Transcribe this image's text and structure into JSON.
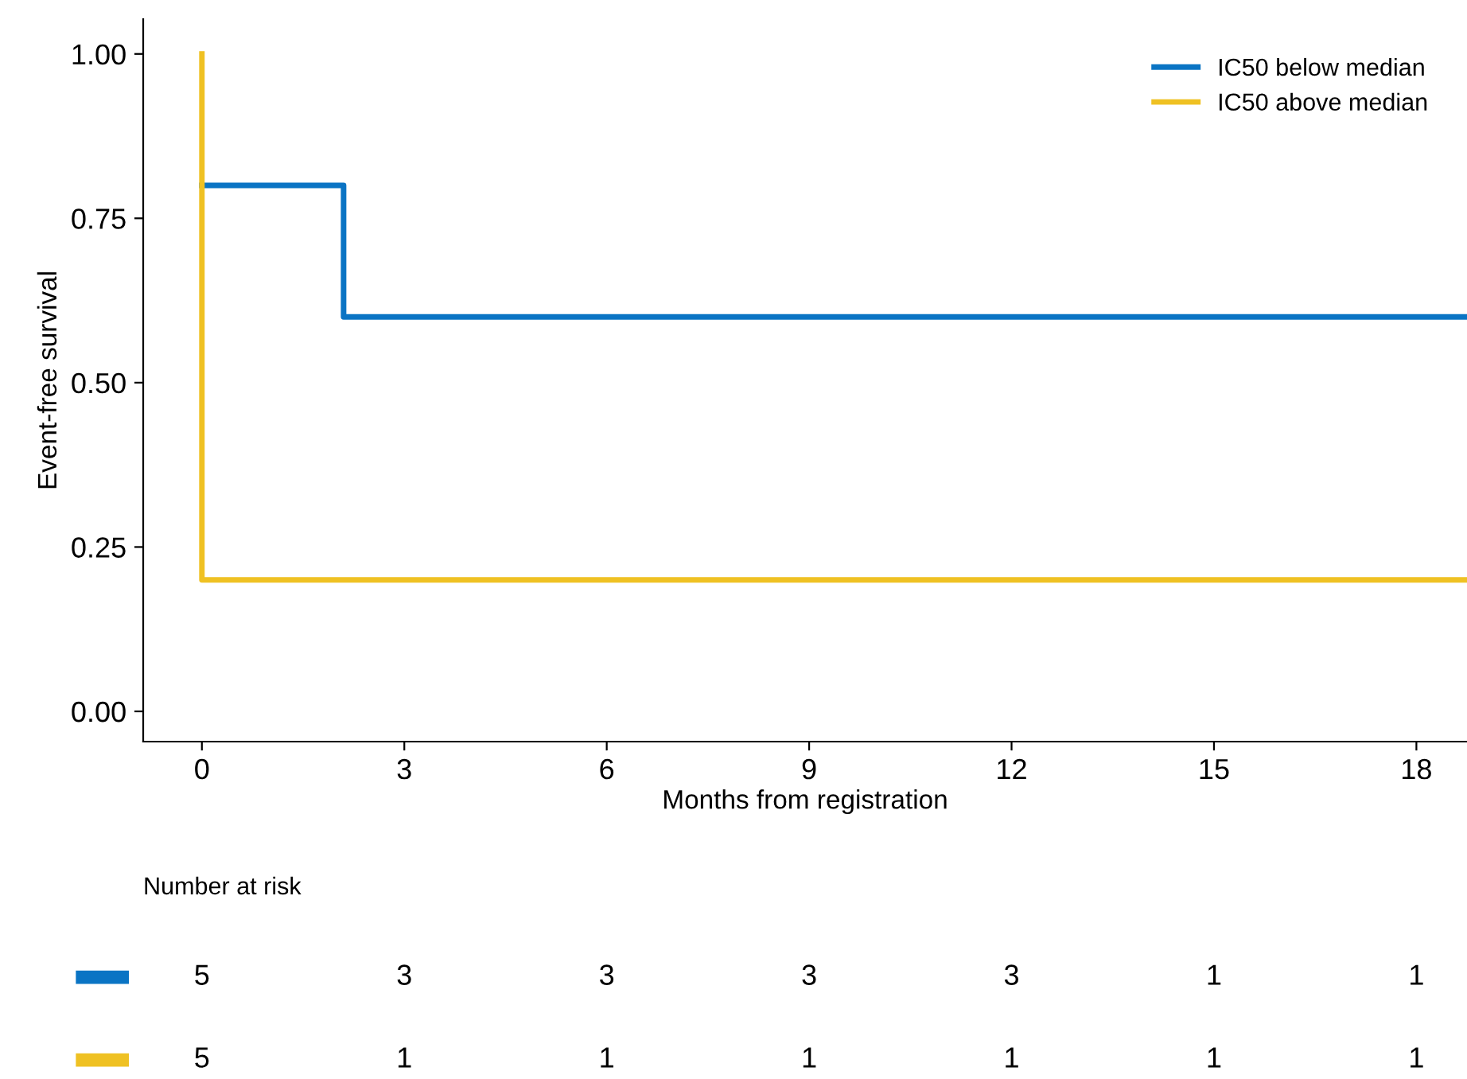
{
  "chart_data": [
    {
      "type": "step",
      "xlabel": "Months from registration",
      "ylabel": "Event-free survival",
      "xlim": [
        -0.87,
        18.75
      ],
      "ylim": [
        -0.046,
        1.053
      ],
      "xticks": [
        0,
        3,
        6,
        9,
        12,
        15,
        18
      ],
      "yticks": [
        {
          "value": 0,
          "label": "0.00"
        },
        {
          "value": 0.25,
          "label": "0.25"
        },
        {
          "value": 0.5,
          "label": "0.50"
        },
        {
          "value": 0.75,
          "label": "0.75"
        },
        {
          "value": 1,
          "label": "1.00"
        }
      ],
      "grid": false,
      "legend": "top right",
      "series": [
        {
          "name": "IC50 below median",
          "color": "#0a74c4",
          "x": [
            0,
            2.1,
            18.75
          ],
          "values": [
            0.8,
            0.6,
            0.6
          ]
        },
        {
          "name": "IC50 above median",
          "color": "#efc123",
          "x": [
            0,
            0,
            18.75
          ],
          "values": [
            1,
            0.2,
            0.2
          ]
        }
      ]
    },
    {
      "type": "other",
      "title": "Number at risk",
      "colors": [
        "#0a74c4",
        "#efc123"
      ],
      "annotations": [
        "5",
        "3",
        "3",
        "3",
        "3",
        "1",
        "1",
        "5",
        "1",
        "1",
        "1",
        "1",
        "1",
        "1"
      ]
    }
  ]
}
